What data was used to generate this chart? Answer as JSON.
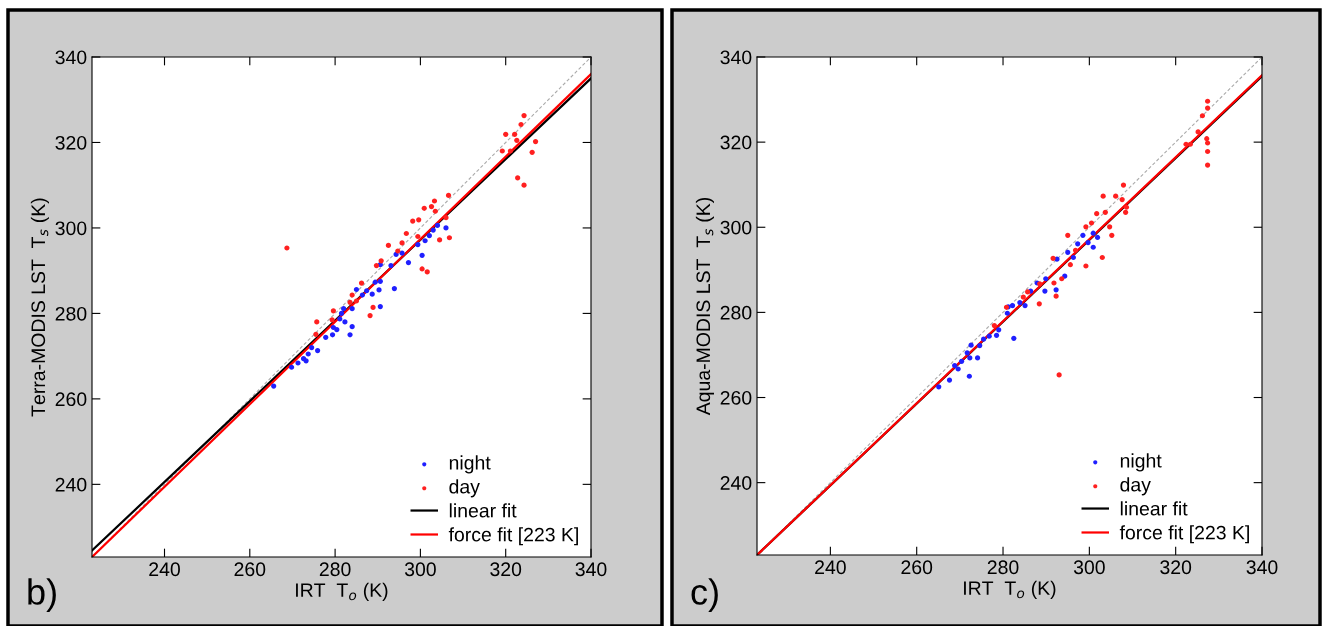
{
  "chart_data": [
    {
      "type": "scatter",
      "xlabel": "IRT  T$_{o}$ (K)",
      "ylabel": "Terra-MODIS LST  T$_{s}$ (K)",
      "annotations": [
        "b)"
      ],
      "xlim": [
        223,
        340
      ],
      "ylim": [
        223,
        340
      ],
      "xticks": [
        240,
        260,
        280,
        300,
        320,
        340
      ],
      "yticks": [
        240,
        260,
        280,
        300,
        320,
        340
      ],
      "grid": false,
      "legend": "bottom right",
      "series": [
        {
          "name": "night",
          "color": "#1f1fff",
          "marker": "circle",
          "x": [
            265.6,
            269.8,
            271.3,
            272.6,
            273.2,
            273.7,
            274.5,
            275.9,
            277.8,
            279.4,
            279.6,
            280.4,
            281.1,
            281.5,
            282,
            282.3,
            283.5,
            284,
            284,
            285,
            286.4,
            287.4,
            288.7,
            289.4,
            290.3,
            290.6,
            290.6,
            290.6,
            293.1,
            293.9,
            294.3,
            295.7,
            297.2,
            299.4,
            300.4,
            301.1,
            302.1,
            303,
            304,
            306
          ],
          "values": [
            263,
            267.4,
            268.4,
            269.4,
            268.9,
            270.5,
            272,
            271.3,
            274.4,
            275,
            276.7,
            276.2,
            278.7,
            280,
            281.1,
            278,
            275,
            276.9,
            281.1,
            285.6,
            284.3,
            285.3,
            284.5,
            287.3,
            285.5,
            281.6,
            287.5,
            291.4,
            291.2,
            285.8,
            293.8,
            294.1,
            291.9,
            296.1,
            293.6,
            297,
            298.2,
            299.5,
            300.6,
            300
          ]
        },
        {
          "name": "day",
          "color": "#ff2020",
          "marker": "circle",
          "x": [
            268.7,
            275.7,
            275.5,
            279.6,
            279.3,
            283.5,
            284,
            285,
            286.2,
            288.2,
            288.9,
            289.7,
            290.8,
            292.5,
            294.7,
            295.7,
            296.7,
            298.2,
            299.4,
            299.6,
            300.4,
            300.9,
            301.6,
            302.6,
            303.3,
            303.5,
            304.5,
            306,
            306.6,
            306.8,
            319.2,
            320,
            321.1,
            322.1,
            322.6,
            322.8,
            323.6,
            324.3,
            324.3,
            326.2,
            327
          ],
          "values": [
            295.3,
            278,
            275.1,
            280.6,
            278.5,
            282.6,
            284.3,
            282.9,
            287.1,
            279.5,
            281.4,
            291.2,
            292.3,
            295.9,
            294.6,
            296.5,
            298.7,
            301.6,
            298,
            301.9,
            290.4,
            304.6,
            289.7,
            305,
            306.3,
            303.9,
            297.2,
            302.4,
            307.6,
            297.7,
            318,
            321.9,
            318,
            321.9,
            320.5,
            311.7,
            324.2,
            326.3,
            310,
            317.7,
            320.2
          ]
        },
        {
          "type": "line",
          "color": "#aaaaaa",
          "line_style": "dashed",
          "x": [
            223,
            340
          ],
          "values": [
            223,
            340
          ]
        },
        {
          "name": "linear fit",
          "type": "line",
          "color": "#000000",
          "line_style": "solid",
          "x": [
            223,
            340
          ],
          "values": [
            224.5,
            335
          ]
        },
        {
          "name": "force fit [223 K]",
          "type": "line",
          "color": "#ff0000",
          "line_style": "solid",
          "x": [
            223,
            340
          ],
          "values": [
            223,
            336
          ]
        }
      ]
    },
    {
      "type": "scatter",
      "xlabel": "IRT  T$_{o}$ (K)",
      "ylabel": "Aqua-MODIS LST  T$_{s}$ (K)",
      "annotations": [
        "c)"
      ],
      "xlim": [
        223,
        340
      ],
      "ylim": [
        223,
        340
      ],
      "xticks": [
        240,
        260,
        280,
        300,
        320,
        340
      ],
      "yticks": [
        240,
        260,
        280,
        300,
        320,
        340
      ],
      "grid": false,
      "legend": "bottom right",
      "series": [
        {
          "name": "night",
          "color": "#1f1fff",
          "marker": "circle",
          "x": [
            265.1,
            267.6,
            268.8,
            269.6,
            270.4,
            271.7,
            272.2,
            272.6,
            272.3,
            274.1,
            274.6,
            275.5,
            276.8,
            278.5,
            279,
            281,
            281.2,
            282.2,
            282.5,
            283.9,
            285.1,
            286.4,
            287.9,
            289.7,
            289.9,
            292.3,
            292.5,
            294.3,
            295,
            296.3,
            297.3,
            298.5,
            299.7,
            300.9,
            300.9,
            301.9
          ],
          "values": [
            262.5,
            264.1,
            267.5,
            266.7,
            268.5,
            270.5,
            265,
            272.3,
            269.3,
            269.3,
            272.2,
            273.7,
            274.4,
            274.6,
            275.9,
            279.8,
            281.3,
            281.6,
            273.9,
            282.3,
            281.6,
            285,
            286.9,
            285,
            287.9,
            285.3,
            292.5,
            288.5,
            294.1,
            292.9,
            296.1,
            298.1,
            296.4,
            295.3,
            298.6,
            297.6
          ]
        },
        {
          "name": "day",
          "color": "#ff2020",
          "marker": "circle",
          "x": [
            278,
            280.8,
            284.7,
            285.7,
            288.4,
            288.5,
            291.8,
            292.3,
            293,
            291.6,
            293.6,
            295,
            295.6,
            296.8,
            299.2,
            299.2,
            300.5,
            301.7,
            303,
            303.2,
            303.7,
            304.7,
            305.2,
            306.1,
            307.6,
            307.9,
            308.4,
            308.6,
            322.4,
            323.4,
            325.2,
            326.2,
            327.4,
            327.4,
            327.2,
            327.4,
            327.4,
            327.4
          ],
          "values": [
            276.9,
            281.2,
            283.6,
            284.8,
            282,
            286.7,
            286.9,
            283.8,
            265.3,
            292.7,
            287.9,
            298.1,
            291.2,
            294.6,
            290.9,
            300.1,
            301,
            303.2,
            292.9,
            307.3,
            303.5,
            300.1,
            298.1,
            307.3,
            306.5,
            309.9,
            303.5,
            304.7,
            319.5,
            319.5,
            322.4,
            326.2,
            329.6,
            328,
            320.8,
            319.8,
            317.8,
            314.6
          ]
        },
        {
          "type": "line",
          "color": "#aaaaaa",
          "line_style": "dashed",
          "x": [
            223,
            340
          ],
          "values": [
            223,
            340
          ]
        },
        {
          "name": "linear fit",
          "type": "line",
          "color": "#000000",
          "line_style": "solid",
          "x": [
            223,
            340
          ],
          "values": [
            223,
            335.5
          ]
        },
        {
          "name": "force fit [223 K]",
          "type": "line",
          "color": "#ff0000",
          "line_style": "solid",
          "x": [
            223,
            340
          ],
          "values": [
            223,
            335.7
          ]
        }
      ]
    }
  ]
}
